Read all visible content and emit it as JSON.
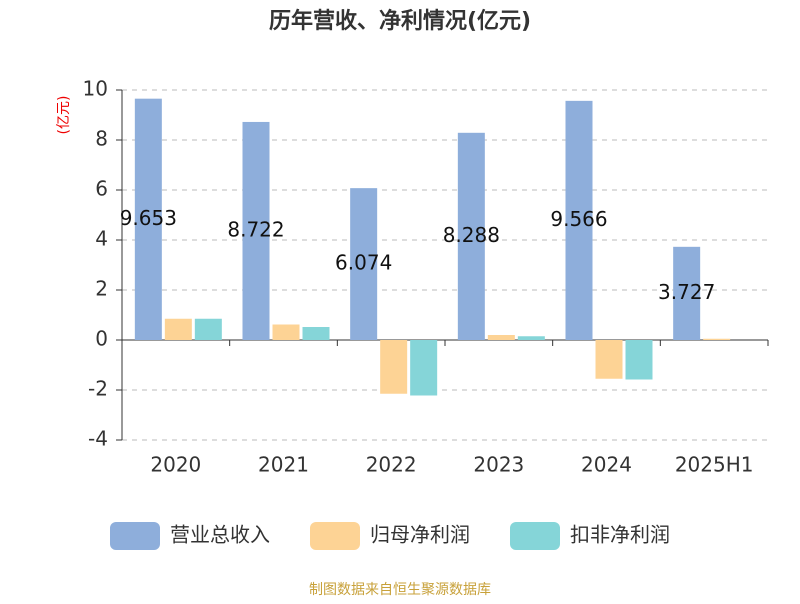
{
  "chart_data": {
    "type": "bar",
    "title": "历年营收、净利情况(亿元)",
    "y_label": "(亿元)",
    "categories": [
      "2020",
      "2021",
      "2022",
      "2023",
      "2024",
      "2025H1"
    ],
    "series": [
      {
        "name": "营业总收入",
        "color": "#8eaedb",
        "values": [
          9.653,
          8.722,
          6.074,
          8.288,
          9.566,
          3.727
        ]
      },
      {
        "name": "归母净利润",
        "color": "#fdd395",
        "values": [
          0.85,
          0.62,
          -2.15,
          0.2,
          -1.55,
          0.05
        ]
      },
      {
        "name": "扣非净利润",
        "color": "#85d5d8",
        "values": [
          0.85,
          0.52,
          -2.22,
          0.15,
          -1.58,
          0
        ]
      }
    ],
    "ylim": [
      -4,
      10
    ],
    "yticks": [
      -4,
      -2,
      0,
      2,
      4,
      6,
      8,
      10
    ],
    "grid": true,
    "source": "制图数据来自恒生聚源数据库"
  }
}
